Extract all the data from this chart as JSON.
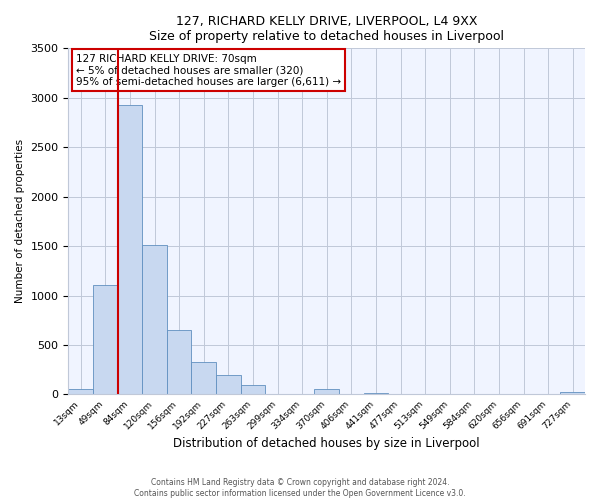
{
  "title": "127, RICHARD KELLY DRIVE, LIVERPOOL, L4 9XX",
  "subtitle": "Size of property relative to detached houses in Liverpool",
  "xlabel": "Distribution of detached houses by size in Liverpool",
  "ylabel": "Number of detached properties",
  "bar_labels": [
    "13sqm",
    "49sqm",
    "84sqm",
    "120sqm",
    "156sqm",
    "192sqm",
    "227sqm",
    "263sqm",
    "299sqm",
    "334sqm",
    "370sqm",
    "406sqm",
    "441sqm",
    "477sqm",
    "513sqm",
    "549sqm",
    "584sqm",
    "620sqm",
    "656sqm",
    "691sqm",
    "727sqm"
  ],
  "bar_heights": [
    55,
    1110,
    2930,
    1510,
    650,
    330,
    200,
    100,
    0,
    0,
    55,
    0,
    20,
    0,
    0,
    0,
    0,
    0,
    0,
    0,
    30
  ],
  "bar_color": "#c8d8f0",
  "bar_edge_color": "#6090c0",
  "vline_color": "#cc0000",
  "annotation_text": "127 RICHARD KELLY DRIVE: 70sqm\n← 5% of detached houses are smaller (320)\n95% of semi-detached houses are larger (6,611) →",
  "annotation_box_color": "white",
  "annotation_box_edge_color": "#cc0000",
  "ylim": [
    0,
    3500
  ],
  "yticks": [
    0,
    500,
    1000,
    1500,
    2000,
    2500,
    3000,
    3500
  ],
  "footer_line1": "Contains HM Land Registry data © Crown copyright and database right 2024.",
  "footer_line2": "Contains public sector information licensed under the Open Government Licence v3.0.",
  "bg_color": "#ffffff",
  "plot_bg_color": "#f0f4ff",
  "grid_color": "#c0c8d8"
}
